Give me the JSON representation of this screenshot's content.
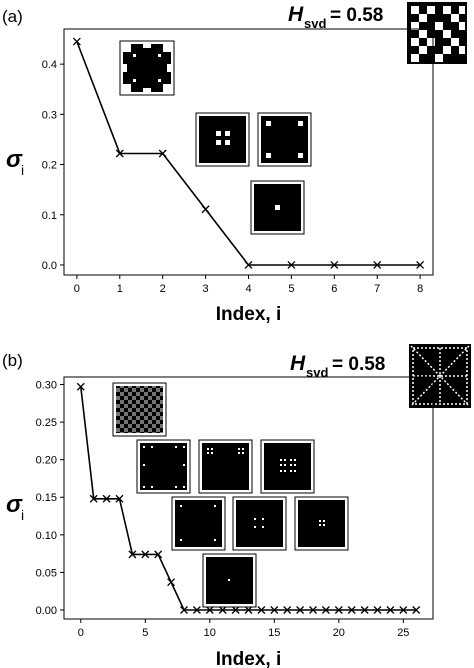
{
  "chart_data": [
    {
      "panel_label": "(a)",
      "type": "line",
      "hsvd": {
        "symbol": "H",
        "subscript": "svd",
        "value": "= 0.58"
      },
      "xlabel": "Index, i",
      "ylabel": "σ",
      "ylabel_sub": "i",
      "xlim": [
        -0.3,
        8.3
      ],
      "ylim": [
        -0.02,
        0.47
      ],
      "xticks": [
        0,
        1,
        2,
        3,
        4,
        5,
        6,
        7,
        8
      ],
      "yticks": [
        0.0,
        0.1,
        0.2,
        0.3,
        0.4
      ],
      "ytick_decimals": 1,
      "x": [
        0,
        1,
        2,
        3,
        4,
        5,
        6,
        7,
        8
      ],
      "y": [
        0.445,
        0.222,
        0.222,
        0.111,
        0.0,
        0.0,
        0.0,
        0.0,
        0.0
      ],
      "marker": "x",
      "line_color": "#000000"
    },
    {
      "panel_label": "(b)",
      "type": "line",
      "hsvd": {
        "symbol": "H",
        "subscript": "svd",
        "value": "= 0.58"
      },
      "xlabel": "Index, i",
      "ylabel": "σ",
      "ylabel_sub": "i",
      "xlim": [
        -1.3,
        27.3
      ],
      "ylim": [
        -0.012,
        0.31
      ],
      "xticks": [
        0,
        5,
        10,
        15,
        20,
        25
      ],
      "yticks": [
        0.0,
        0.05,
        0.1,
        0.15,
        0.2,
        0.25,
        0.3
      ],
      "ytick_decimals": 2,
      "x": [
        0,
        1,
        2,
        3,
        4,
        5,
        6,
        7,
        8,
        9,
        10,
        11,
        12,
        13,
        14,
        15,
        16,
        17,
        18,
        19,
        20,
        21,
        22,
        23,
        24,
        25,
        26
      ],
      "y": [
        0.297,
        0.148,
        0.148,
        0.148,
        0.074,
        0.074,
        0.074,
        0.037,
        0,
        0,
        0,
        0,
        0,
        0,
        0,
        0,
        0,
        0,
        0,
        0,
        0,
        0,
        0,
        0,
        0,
        0,
        0
      ],
      "marker": "x",
      "line_color": "#000000"
    }
  ]
}
